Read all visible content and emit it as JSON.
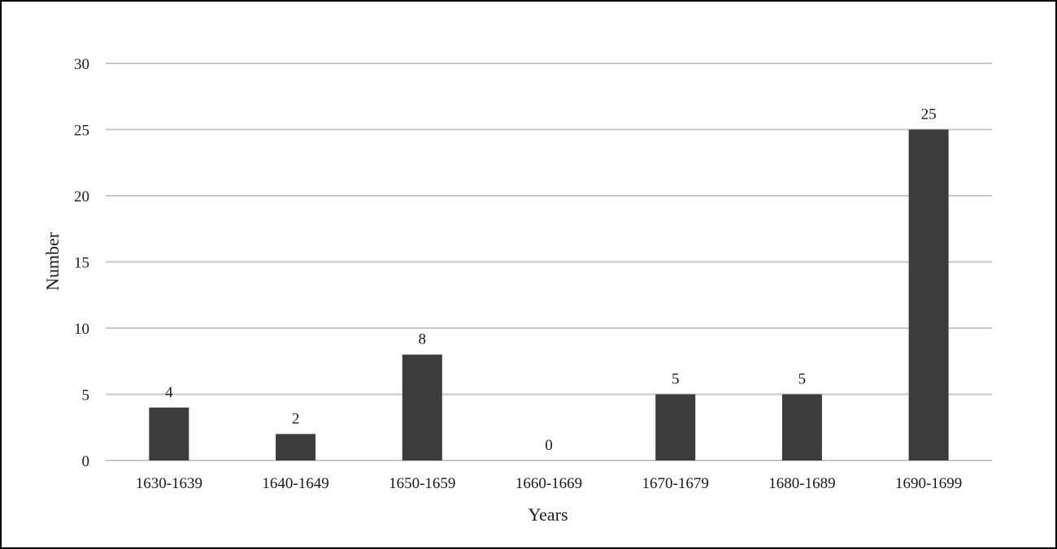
{
  "chart_data": {
    "type": "bar",
    "title": "",
    "xlabel": "Years",
    "ylabel": "Number",
    "categories": [
      "1630-1639",
      "1640-1649",
      "1650-1659",
      "1660-1669",
      "1670-1679",
      "1680-1689",
      "1690-1699"
    ],
    "values": [
      4,
      2,
      8,
      0,
      5,
      5,
      25
    ],
    "data_labels": [
      "4",
      "2",
      "8",
      "0",
      "5",
      "5",
      "25"
    ],
    "ylim": [
      0,
      30
    ],
    "yticks": [
      0,
      5,
      10,
      15,
      20,
      25,
      30
    ],
    "ytick_labels": [
      "0",
      "5",
      "10",
      "15",
      "20",
      "25",
      "30"
    ],
    "grid": true,
    "legend": "none",
    "bar_color": "#3c3c3c",
    "grid_color": "#c8c8c8"
  }
}
